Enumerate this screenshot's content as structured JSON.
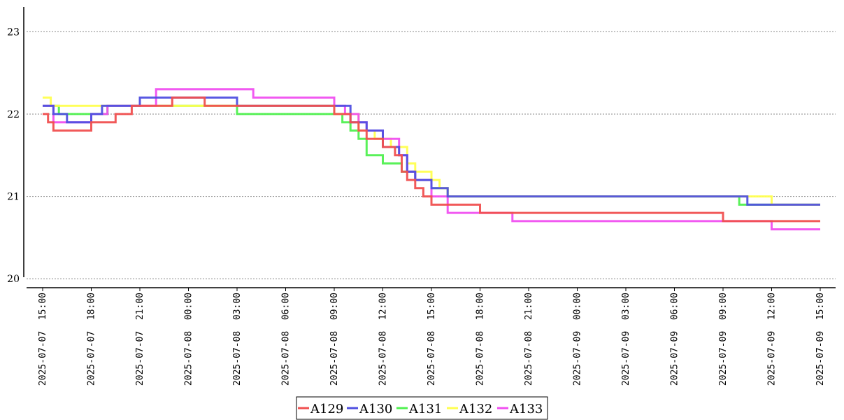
{
  "chart_data": {
    "type": "line",
    "title": "",
    "xlabel": "",
    "ylabel": "",
    "ylim": [
      19.9,
      23.3
    ],
    "y_ticks": [
      20,
      21,
      22,
      23
    ],
    "x_ticks": [
      "2025-07-07 15:00",
      "2025-07-07 18:00",
      "2025-07-07 21:00",
      "2025-07-08 00:00",
      "2025-07-08 03:00",
      "2025-07-08 06:00",
      "2025-07-08 09:00",
      "2025-07-08 12:00",
      "2025-07-08 15:00",
      "2025-07-08 18:00",
      "2025-07-08 21:00",
      "2025-07-09 00:00",
      "2025-07-09 03:00",
      "2025-07-09 06:00",
      "2025-07-09 09:00",
      "2025-07-09 12:00",
      "2025-07-09 15:00"
    ],
    "grid": "horizontal dotted",
    "legend_position": "bottom-center",
    "series_order": [
      "A131",
      "A132",
      "A133",
      "A130",
      "A129"
    ],
    "series": [
      {
        "name": "A129",
        "color": "#f05050",
        "points": [
          [
            "2025-07-07 15:00",
            22.0
          ],
          [
            "2025-07-07 15:20",
            21.9
          ],
          [
            "2025-07-07 15:40",
            21.8
          ],
          [
            "2025-07-07 18:00",
            21.9
          ],
          [
            "2025-07-07 19:30",
            22.0
          ],
          [
            "2025-07-07 20:30",
            22.1
          ],
          [
            "2025-07-07 23:00",
            22.2
          ],
          [
            "2025-07-08 01:00",
            22.1
          ],
          [
            "2025-07-08 09:00",
            22.0
          ],
          [
            "2025-07-08 10:00",
            21.9
          ],
          [
            "2025-07-08 10:30",
            21.8
          ],
          [
            "2025-07-08 11:00",
            21.7
          ],
          [
            "2025-07-08 12:00",
            21.6
          ],
          [
            "2025-07-08 12:45",
            21.5
          ],
          [
            "2025-07-08 13:10",
            21.3
          ],
          [
            "2025-07-08 13:30",
            21.2
          ],
          [
            "2025-07-08 14:00",
            21.1
          ],
          [
            "2025-07-08 14:30",
            21.0
          ],
          [
            "2025-07-08 15:00",
            20.9
          ],
          [
            "2025-07-08 18:00",
            20.8
          ],
          [
            "2025-07-09 09:00",
            20.7
          ],
          [
            "2025-07-09 15:00",
            20.7
          ]
        ]
      },
      {
        "name": "A130",
        "color": "#5050e0",
        "points": [
          [
            "2025-07-07 15:00",
            22.1
          ],
          [
            "2025-07-07 15:40",
            22.0
          ],
          [
            "2025-07-07 16:30",
            21.9
          ],
          [
            "2025-07-07 18:00",
            22.0
          ],
          [
            "2025-07-07 18:40",
            22.1
          ],
          [
            "2025-07-07 21:00",
            22.2
          ],
          [
            "2025-07-08 03:00",
            22.1
          ],
          [
            "2025-07-08 10:00",
            21.9
          ],
          [
            "2025-07-08 11:00",
            21.8
          ],
          [
            "2025-07-08 12:00",
            21.6
          ],
          [
            "2025-07-08 13:00",
            21.5
          ],
          [
            "2025-07-08 13:30",
            21.3
          ],
          [
            "2025-07-08 14:00",
            21.2
          ],
          [
            "2025-07-08 15:00",
            21.1
          ],
          [
            "2025-07-08 16:00",
            21.0
          ],
          [
            "2025-07-09 10:30",
            20.9
          ],
          [
            "2025-07-09 15:00",
            20.9
          ]
        ]
      },
      {
        "name": "A131",
        "color": "#50f050",
        "points": [
          [
            "2025-07-07 15:00",
            22.1
          ],
          [
            "2025-07-07 16:00",
            22.0
          ],
          [
            "2025-07-07 18:00",
            22.0
          ],
          [
            "2025-07-07 19:00",
            22.1
          ],
          [
            "2025-07-08 03:00",
            22.0
          ],
          [
            "2025-07-08 09:30",
            21.9
          ],
          [
            "2025-07-08 10:00",
            21.8
          ],
          [
            "2025-07-08 10:30",
            21.7
          ],
          [
            "2025-07-08 11:00",
            21.5
          ],
          [
            "2025-07-08 12:00",
            21.4
          ],
          [
            "2025-07-08 13:10",
            21.3
          ],
          [
            "2025-07-08 14:00",
            21.2
          ],
          [
            "2025-07-08 15:00",
            21.1
          ],
          [
            "2025-07-08 16:00",
            21.0
          ],
          [
            "2025-07-09 09:00",
            21.0
          ],
          [
            "2025-07-09 10:00",
            20.9
          ],
          [
            "2025-07-09 15:00",
            20.9
          ]
        ]
      },
      {
        "name": "A132",
        "color": "#ffff50",
        "points": [
          [
            "2025-07-07 15:00",
            22.2
          ],
          [
            "2025-07-07 15:30",
            22.1
          ],
          [
            "2025-07-07 18:00",
            22.1
          ],
          [
            "2025-07-07 21:00",
            22.1
          ],
          [
            "2025-07-08 03:00",
            22.1
          ],
          [
            "2025-07-08 09:00",
            22.0
          ],
          [
            "2025-07-08 10:30",
            21.8
          ],
          [
            "2025-07-08 11:30",
            21.7
          ],
          [
            "2025-07-08 12:30",
            21.6
          ],
          [
            "2025-07-08 13:30",
            21.4
          ],
          [
            "2025-07-08 14:00",
            21.3
          ],
          [
            "2025-07-08 15:00",
            21.2
          ],
          [
            "2025-07-08 15:30",
            21.1
          ],
          [
            "2025-07-08 16:00",
            21.0
          ],
          [
            "2025-07-09 09:00",
            21.0
          ],
          [
            "2025-07-09 12:00",
            20.9
          ],
          [
            "2025-07-09 15:00",
            20.9
          ]
        ]
      },
      {
        "name": "A133",
        "color": "#f050f0",
        "points": [
          [
            "2025-07-07 15:00",
            22.1
          ],
          [
            "2025-07-07 15:40",
            21.9
          ],
          [
            "2025-07-07 18:00",
            22.0
          ],
          [
            "2025-07-07 19:00",
            22.1
          ],
          [
            "2025-07-07 22:00",
            22.3
          ],
          [
            "2025-07-08 04:00",
            22.2
          ],
          [
            "2025-07-08 09:00",
            22.1
          ],
          [
            "2025-07-08 09:40",
            22.0
          ],
          [
            "2025-07-08 10:30",
            21.9
          ],
          [
            "2025-07-08 11:00",
            21.8
          ],
          [
            "2025-07-08 12:00",
            21.7
          ],
          [
            "2025-07-08 13:00",
            21.5
          ],
          [
            "2025-07-08 13:30",
            21.3
          ],
          [
            "2025-07-08 14:00",
            21.2
          ],
          [
            "2025-07-08 15:00",
            21.0
          ],
          [
            "2025-07-08 16:00",
            20.8
          ],
          [
            "2025-07-08 20:00",
            20.7
          ],
          [
            "2025-07-09 12:00",
            20.6
          ],
          [
            "2025-07-09 15:00",
            20.6
          ]
        ]
      }
    ],
    "legend": [
      "A129",
      "A130",
      "A131",
      "A132",
      "A133"
    ]
  }
}
